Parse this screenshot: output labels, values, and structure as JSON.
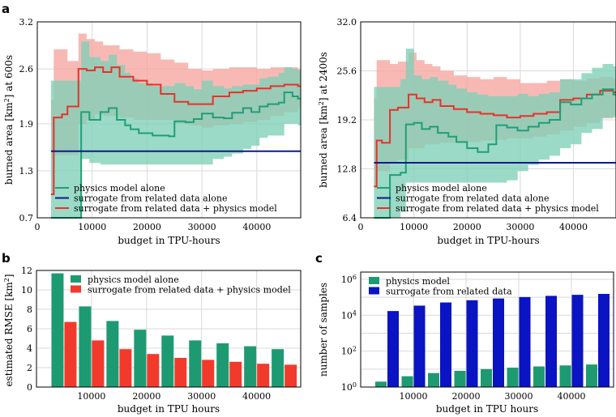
{
  "colors": {
    "physics": "#1f9e77",
    "physics_band": "#7fd0b6",
    "surrogate": "#0b1a8c",
    "combined": "#e8312a",
    "combined_band": "#f6a19b",
    "bar_physics": "#1e9a72",
    "bar_combined": "#f23a2c",
    "bar_surrogate": "#0a14c2",
    "grid": "#d9d9d9"
  },
  "chart_data": [
    {
      "id": "a_left",
      "panel_label": "a",
      "type": "line",
      "xlabel": "budget in TPU-hours",
      "ylabel": "burned area [km²] at 600s",
      "xlim": [
        0,
        48000
      ],
      "ylim": [
        0.7,
        3.2
      ],
      "xticks": [
        0,
        10000,
        20000,
        30000,
        40000
      ],
      "xtick_labels": [
        "0",
        "10000",
        "20000",
        "30000",
        "40000"
      ],
      "yticks": [
        0.7,
        1.3,
        1.9,
        2.6,
        3.2
      ],
      "ytick_labels": [
        "0.7",
        "1.3",
        "1.9",
        "2.6",
        "3.2"
      ],
      "legend": [
        "physics model alone",
        "surrogate from related data alone",
        "surrogate from related data + physics model"
      ],
      "surrogate": {
        "x": [
          2500,
          48000
        ],
        "y": [
          1.55,
          1.55
        ]
      },
      "physics": {
        "x": [
          2500,
          7500,
          8000,
          9500,
          11500,
          13000,
          14500,
          16000,
          17000,
          18500,
          21000,
          24000,
          25000,
          27000,
          28500,
          30000,
          32000,
          34000,
          35500,
          37500,
          39000,
          40500,
          42000,
          44000,
          45000,
          46500,
          47500
        ],
        "y": [
          0.7,
          0.7,
          2.05,
          1.95,
          2.05,
          2.1,
          1.95,
          1.88,
          1.83,
          1.78,
          1.75,
          1.74,
          1.93,
          1.92,
          1.96,
          2.03,
          1.98,
          1.97,
          2.04,
          2.1,
          2.05,
          2.12,
          2.15,
          2.17,
          2.3,
          2.25,
          2.22
        ],
        "lo": [
          0.7,
          0.7,
          1.45,
          1.4,
          1.38,
          1.38,
          1.38,
          1.38,
          1.38,
          1.38,
          1.38,
          1.38,
          1.38,
          1.38,
          1.38,
          1.38,
          1.45,
          1.48,
          1.52,
          1.58,
          1.62,
          1.72,
          1.75,
          1.75,
          1.9,
          1.9,
          1.88
        ],
        "hi": [
          2.45,
          2.45,
          2.95,
          2.75,
          2.7,
          2.78,
          2.65,
          2.55,
          2.48,
          2.42,
          2.38,
          2.38,
          2.42,
          2.38,
          2.34,
          2.45,
          2.38,
          2.35,
          2.38,
          2.4,
          2.4,
          2.48,
          2.5,
          2.55,
          2.62,
          2.6,
          2.58
        ]
      },
      "combined": {
        "x": [
          2500,
          3000,
          4500,
          5500,
          7500,
          9000,
          10500,
          12000,
          13500,
          15000,
          17500,
          20000,
          22500,
          25000,
          27500,
          30000,
          32000,
          35000,
          37500,
          40000,
          42500,
          45000,
          47500
        ],
        "y": [
          1.0,
          1.98,
          2.02,
          2.12,
          2.6,
          2.58,
          2.62,
          2.56,
          2.62,
          2.5,
          2.45,
          2.4,
          2.28,
          2.18,
          2.15,
          2.15,
          2.25,
          2.3,
          2.32,
          2.35,
          2.38,
          2.4,
          2.38
        ],
        "lo": [
          1.0,
          1.5,
          1.5,
          1.5,
          1.9,
          1.95,
          2.02,
          2.0,
          2.0,
          1.98,
          1.95,
          1.95,
          1.95,
          1.9,
          1.88,
          1.85,
          1.88,
          1.9,
          1.92,
          1.95,
          2.0,
          2.05,
          2.1
        ],
        "hi": [
          2.2,
          2.85,
          2.85,
          2.7,
          3.05,
          2.98,
          2.95,
          2.9,
          2.9,
          2.85,
          2.82,
          2.8,
          2.72,
          2.68,
          2.6,
          2.58,
          2.6,
          2.62,
          2.62,
          2.6,
          2.62,
          2.62,
          2.6
        ]
      }
    },
    {
      "id": "a_right",
      "type": "line",
      "xlabel": "budget in TPU-hours",
      "ylabel": "burned area [km²] at 2400s",
      "xlim": [
        0,
        48000
      ],
      "ylim": [
        6.4,
        32.0
      ],
      "xticks": [
        0,
        10000,
        20000,
        30000,
        40000
      ],
      "xtick_labels": [
        "0",
        "10000",
        "20000",
        "30000",
        "40000"
      ],
      "yticks": [
        6.4,
        12.8,
        19.2,
        25.6,
        32.0
      ],
      "ytick_labels": [
        "6.4",
        "12.8",
        "19.2",
        "25.6",
        "32.0"
      ],
      "legend": [
        "physics model alone",
        "surrogate from related data alone",
        "surrogate from related data + physics model"
      ],
      "surrogate": {
        "x": [
          2500,
          48000
        ],
        "y": [
          13.6,
          13.6
        ]
      },
      "physics": {
        "x": [
          2500,
          5500,
          7500,
          8500,
          10000,
          11500,
          13000,
          14500,
          16500,
          18000,
          20000,
          22000,
          24000,
          25500,
          27500,
          29500,
          31500,
          33500,
          35500,
          37500,
          39500,
          41500,
          43500,
          45500,
          47500
        ],
        "y": [
          6.4,
          12.0,
          12.3,
          18.6,
          18.8,
          18.0,
          18.3,
          17.5,
          17.0,
          16.3,
          15.5,
          15.0,
          16.0,
          18.5,
          18.2,
          17.8,
          18.3,
          18.8,
          19.2,
          21.5,
          21.2,
          22.0,
          22.5,
          23.2,
          22.5
        ],
        "lo": [
          6.4,
          6.4,
          7.2,
          11.0,
          11.0,
          11.0,
          11.0,
          11.0,
          11.0,
          11.0,
          11.0,
          11.0,
          11.0,
          11.0,
          11.3,
          12.5,
          13.3,
          14.0,
          14.5,
          15.5,
          16.0,
          17.5,
          18.0,
          19.5,
          19.5
        ],
        "hi": [
          23.5,
          23.5,
          24.5,
          28.5,
          25.0,
          24.5,
          24.8,
          24.3,
          23.8,
          23.3,
          22.8,
          22.5,
          22.3,
          22.3,
          22.3,
          22.6,
          22.3,
          22.6,
          22.8,
          24.5,
          24.5,
          25.3,
          26.0,
          26.5,
          26.2
        ]
      },
      "combined": {
        "x": [
          2500,
          3000,
          4000,
          5500,
          7000,
          9000,
          10500,
          12000,
          13500,
          15000,
          17500,
          20000,
          22500,
          25000,
          27500,
          30000,
          32500,
          35000,
          37500,
          40000,
          42500,
          45000,
          47500
        ],
        "y": [
          10.5,
          16.5,
          16.2,
          20.5,
          20.8,
          22.5,
          22.0,
          21.5,
          21.8,
          21.0,
          20.6,
          20.2,
          20.0,
          19.8,
          19.5,
          19.7,
          20.0,
          20.2,
          21.8,
          22.0,
          22.5,
          23.0,
          22.8
        ],
        "lo": [
          10.5,
          12.5,
          12.5,
          13.5,
          14.0,
          15.5,
          15.5,
          16.0,
          16.0,
          16.2,
          16.3,
          16.3,
          16.5,
          16.6,
          16.8,
          16.8,
          17.0,
          17.3,
          17.8,
          18.3,
          18.8,
          19.4,
          19.8
        ],
        "hi": [
          22.0,
          27.0,
          27.0,
          26.5,
          26.8,
          28.0,
          27.0,
          26.5,
          26.2,
          25.6,
          25.0,
          24.8,
          24.5,
          24.8,
          24.5,
          24.0,
          24.0,
          24.3,
          24.5,
          24.3,
          24.6,
          24.8,
          24.5
        ]
      }
    },
    {
      "id": "b",
      "panel_label": "b",
      "type": "bar",
      "xlabel": "budget in TPU hours",
      "ylabel": "estimated RMSE [km²]",
      "ylim": [
        0,
        12
      ],
      "yticks": [
        0,
        2,
        4,
        6,
        8,
        10,
        12
      ],
      "ytick_labels": [
        "0",
        "2",
        "4",
        "6",
        "8",
        "10",
        "12"
      ],
      "xlim": [
        0,
        48000
      ],
      "xticks": [
        10000,
        20000,
        30000,
        40000
      ],
      "xtick_labels": [
        "10000",
        "20000",
        "30000",
        "40000"
      ],
      "x": [
        5000,
        10000,
        15000,
        20000,
        25000,
        30000,
        35000,
        40000,
        45000
      ],
      "series": [
        {
          "name": "physics model alone",
          "values": [
            11.7,
            8.3,
            6.8,
            5.9,
            5.3,
            4.8,
            4.5,
            4.2,
            3.9
          ]
        },
        {
          "name": "surrogate from related data + physics model",
          "values": [
            6.7,
            4.8,
            3.9,
            3.4,
            3.0,
            2.8,
            2.6,
            2.4,
            2.3
          ]
        }
      ]
    },
    {
      "id": "c",
      "panel_label": "c",
      "type": "bar",
      "xlabel": "budget in TPU hours",
      "ylabel": "number of samples",
      "yscale": "log",
      "ylim_exp": [
        0,
        6.4
      ],
      "yticks_exp": [
        0,
        2,
        4,
        6
      ],
      "xlim": [
        0,
        48000
      ],
      "xticks": [
        10000,
        20000,
        30000,
        40000
      ],
      "xtick_labels": [
        "10000",
        "20000",
        "30000",
        "40000"
      ],
      "x": [
        5000,
        10000,
        15000,
        20000,
        25000,
        30000,
        35000,
        40000,
        45000
      ],
      "series": [
        {
          "name": "physics model",
          "values": [
            2,
            4,
            6,
            8,
            10,
            12,
            14,
            16,
            18
          ]
        },
        {
          "name": "surrogate from related data",
          "values": [
            17000,
            34000,
            51000,
            68000,
            85000,
            102000,
            119000,
            136000,
            153000
          ]
        }
      ]
    }
  ]
}
